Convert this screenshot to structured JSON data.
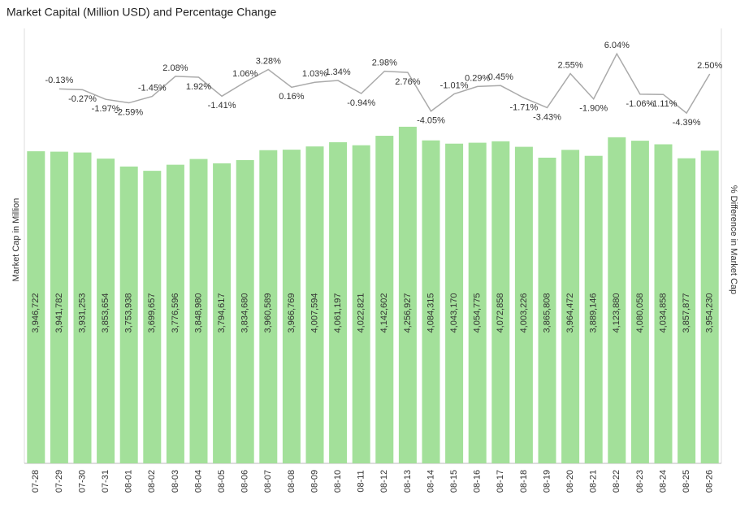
{
  "chart_data": {
    "type": "bar-line",
    "title": "Market Capital (Million USD) and Percentage Change",
    "y_label": "Market Cap in Million",
    "y2_label": "% Difference in Market Cap",
    "categories": [
      "07-28",
      "07-29",
      "07-30",
      "07-31",
      "08-01",
      "08-02",
      "08-03",
      "08-04",
      "08-05",
      "08-06",
      "08-07",
      "08-08",
      "08-09",
      "08-10",
      "08-11",
      "08-12",
      "08-13",
      "08-14",
      "08-15",
      "08-16",
      "08-17",
      "08-18",
      "08-19",
      "08-20",
      "08-21",
      "08-22",
      "08-23",
      "08-24",
      "08-25",
      "08-26"
    ],
    "series": [
      {
        "name": "Market Cap",
        "type": "bar",
        "color": "#a3e09a",
        "values": [
          3946722,
          3941782,
          3931253,
          3853654,
          3753938,
          3699657,
          3776596,
          3848980,
          3794617,
          3834680,
          3960589,
          3966769,
          4007594,
          4061197,
          4022821,
          4142602,
          4256927,
          4084315,
          4043170,
          4054775,
          4072858,
          4003226,
          3865808,
          3964472,
          3889146,
          4123880,
          4080058,
          4034858,
          3857877,
          3954230
        ],
        "value_labels": [
          "3,946,722",
          "3,941,782",
          "3,931,253",
          "3,853,654",
          "3,753,938",
          "3,699,657",
          "3,776,596",
          "3,848,980",
          "3,794,617",
          "3,834,680",
          "3,960,589",
          "3,966,769",
          "4,007,594",
          "4,061,197",
          "4,022,821",
          "4,142,602",
          "4,256,927",
          "4,084,315",
          "4,043,170",
          "4,054,775",
          "4,072,858",
          "4,003,226",
          "3,865,808",
          "3,964,472",
          "3,889,146",
          "4,123,880",
          "4,080,058",
          "4,034,858",
          "3,857,877",
          "3,954,230"
        ]
      },
      {
        "name": "% Difference",
        "type": "line",
        "axis": "y2",
        "color": "#aaaaaa",
        "values": [
          null,
          -0.13,
          -0.27,
          -1.97,
          -2.59,
          -1.45,
          2.08,
          1.92,
          -1.41,
          1.06,
          3.28,
          0.16,
          1.03,
          1.34,
          -0.94,
          2.98,
          2.76,
          -4.05,
          -1.01,
          0.29,
          0.45,
          -1.71,
          -3.43,
          2.55,
          -1.9,
          6.04,
          -1.06,
          -1.11,
          -4.39,
          2.5
        ],
        "value_labels": [
          null,
          "-0.13%",
          "-0.27%",
          "-1.97%",
          "-2.59%",
          "-1.45%",
          "2.08%",
          "1.92%",
          "-1.41%",
          "1.06%",
          "3.28%",
          "0.16%",
          "1.03%",
          "1.34%",
          "-0.94%",
          "2.98%",
          "2.76%",
          "-4.05%",
          "-1.01%",
          "0.29%",
          "0.45%",
          "-1.71%",
          "-3.43%",
          "2.55%",
          "-1.90%",
          "6.04%",
          "-1.06%",
          "-1.11%",
          "-4.39%",
          "2.50%"
        ]
      }
    ],
    "ylim": [
      0,
      5500000
    ],
    "y2lim": [
      -66,
      10.5
    ]
  }
}
